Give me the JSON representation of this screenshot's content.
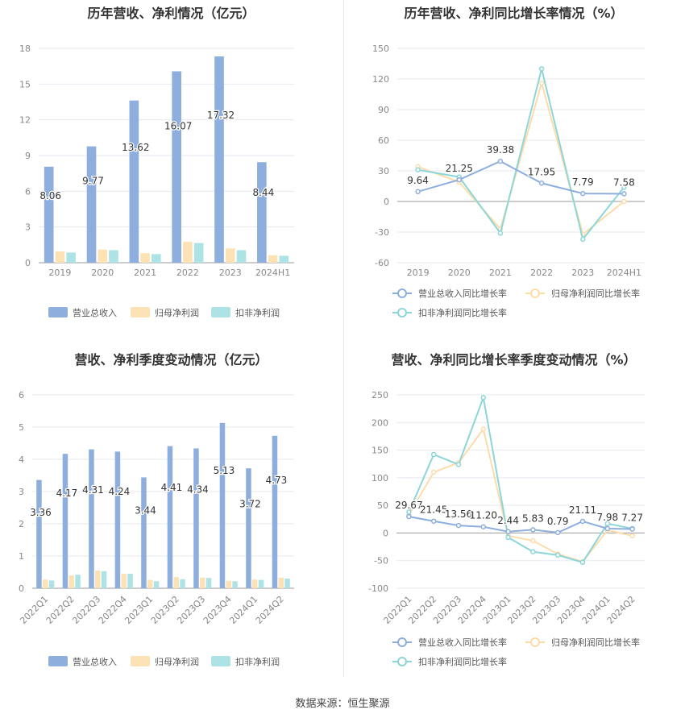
{
  "source": "数据来源：恒生聚源",
  "colors": {
    "revenue": "#8eaedd",
    "parent": "#fde2b5",
    "deducted": "#aee3e6",
    "line1": "#8eaedd",
    "line2": "#fddcab",
    "line3": "#8dd6d8",
    "grid": "#e6e9f0",
    "axis": "#888888",
    "title": "#333333"
  },
  "chart_data": [
    {
      "type": "bar",
      "title": "历年营收、净利情况（亿元）",
      "categories": [
        "2019",
        "2020",
        "2021",
        "2022",
        "2023",
        "2024H1"
      ],
      "ylim": [
        0,
        18
      ],
      "yticks": [
        0,
        3,
        6,
        9,
        12,
        15,
        18
      ],
      "label_series": 0,
      "series": [
        {
          "name": "营业总收入",
          "values": [
            8.06,
            9.77,
            13.62,
            16.07,
            17.32,
            8.44
          ],
          "labels": [
            "8.06",
            "9.77",
            "13.62",
            "16.07",
            "17.32",
            "8.44"
          ]
        },
        {
          "name": "归母净利润",
          "values": [
            0.95,
            1.1,
            0.8,
            1.75,
            1.2,
            0.63
          ]
        },
        {
          "name": "扣非净利润",
          "values": [
            0.85,
            1.05,
            0.72,
            1.65,
            1.05,
            0.58
          ]
        }
      ],
      "legend": "bottom"
    },
    {
      "type": "line",
      "title": "历年营收、净利同比增长率情况（%）",
      "categories": [
        "2019",
        "2020",
        "2021",
        "2022",
        "2023",
        "2024H1"
      ],
      "ylim": [
        -60,
        150
      ],
      "yticks": [
        -60,
        -30,
        0,
        30,
        60,
        90,
        120,
        150
      ],
      "label_series": 0,
      "series": [
        {
          "name": "营业总收入同比增长率",
          "values": [
            9.64,
            21.25,
            39.38,
            17.95,
            7.79,
            7.58
          ],
          "labels": [
            "9.64",
            "21.25",
            "39.38",
            "17.95",
            "7.79",
            "7.58"
          ]
        },
        {
          "name": "归母净利润同比增长率",
          "values": [
            34,
            19,
            -27,
            116,
            -32,
            0
          ]
        },
        {
          "name": "扣非净利润同比增长率",
          "values": [
            31,
            24,
            -31,
            130,
            -37,
            14
          ]
        }
      ],
      "legend": "bottom"
    },
    {
      "type": "bar",
      "title": "营收、净利季度变动情况（亿元）",
      "categories": [
        "2022Q1",
        "2022Q2",
        "2022Q3",
        "2022Q4",
        "2023Q1",
        "2023Q2",
        "2023Q3",
        "2023Q4",
        "2024Q1",
        "2024Q2"
      ],
      "ylim": [
        0,
        6
      ],
      "yticks": [
        0,
        1,
        2,
        3,
        4,
        5,
        6
      ],
      "label_series": 0,
      "series": [
        {
          "name": "营业总收入",
          "values": [
            3.36,
            4.17,
            4.31,
            4.24,
            3.44,
            4.41,
            4.34,
            5.13,
            3.72,
            4.73
          ],
          "labels": [
            "3.36",
            "4.17",
            "4.31",
            "4.24",
            "3.44",
            "4.41",
            "4.34",
            "5.13",
            "3.72",
            "4.73"
          ]
        },
        {
          "name": "归母净利润",
          "values": [
            0.27,
            0.4,
            0.55,
            0.45,
            0.26,
            0.35,
            0.33,
            0.23,
            0.27,
            0.33
          ]
        },
        {
          "name": "扣非净利润",
          "values": [
            0.24,
            0.42,
            0.53,
            0.45,
            0.22,
            0.28,
            0.32,
            0.22,
            0.26,
            0.3
          ]
        }
      ],
      "legend": "bottom"
    },
    {
      "type": "line",
      "title": "营收、净利同比增长率季度变动情况（%）",
      "categories": [
        "2022Q1",
        "2022Q2",
        "2022Q3",
        "2022Q4",
        "2023Q1",
        "2023Q2",
        "2023Q3",
        "2023Q4",
        "2024Q1",
        "2024Q2"
      ],
      "ylim": [
        -100,
        250
      ],
      "yticks": [
        -100,
        -50,
        0,
        50,
        100,
        150,
        200,
        250
      ],
      "label_series": 0,
      "series": [
        {
          "name": "营业总收入同比增长率",
          "values": [
            29.67,
            21.45,
            13.56,
            11.2,
            2.44,
            5.83,
            0.79,
            21.11,
            7.98,
            7.27
          ],
          "labels": [
            "29.67",
            "21.45",
            "13.56",
            "11.20",
            "2.44",
            "5.83",
            "0.79",
            "21.11",
            "7.98",
            "7.27"
          ]
        },
        {
          "name": "归母净利润同比增长率",
          "values": [
            33,
            110,
            127,
            188,
            -5,
            -14,
            -38,
            -52,
            5,
            -5
          ]
        },
        {
          "name": "扣非净利润同比增长率",
          "values": [
            38,
            142,
            124,
            245,
            -8,
            -34,
            -40,
            -53,
            17,
            8
          ]
        }
      ],
      "legend": "bottom"
    }
  ]
}
